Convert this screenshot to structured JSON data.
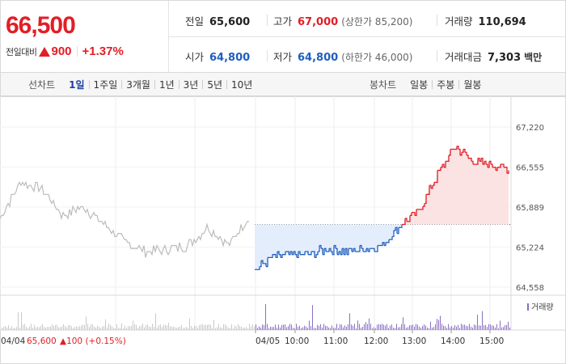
{
  "summary": {
    "current_price": "66,500",
    "change_label": "전일대비",
    "change_amount": "900",
    "change_percent": "+1.37%",
    "prev_close": {
      "label": "전일",
      "value": "65,600"
    },
    "high": {
      "label": "고가",
      "value": "67,000",
      "sub": "(상한가 85,200)"
    },
    "volume": {
      "label": "거래량",
      "value": "110,694"
    },
    "open": {
      "label": "시가",
      "value": "64,800"
    },
    "low": {
      "label": "저가",
      "value": "64,800",
      "sub": "(하한가 46,000)"
    },
    "trade_value": {
      "label": "거래대금",
      "value": "7,303",
      "unit": "백만"
    }
  },
  "tabs": {
    "line_label": "선차트",
    "line_items": [
      "1일",
      "1주일",
      "3개월",
      "1년",
      "3년",
      "5년",
      "10년"
    ],
    "line_active": 0,
    "candle_label": "봉차트",
    "candle_items": [
      "일봉",
      "주봉",
      "월봉"
    ]
  },
  "chart": {
    "y_ticks": [
      "67,220",
      "66,555",
      "65,889",
      "65,224",
      "64,558"
    ],
    "x_ticks": [
      "04/05",
      "10:00",
      "11:00",
      "12:00",
      "13:00",
      "14:00",
      "15:00"
    ],
    "prev_day_label": "04/04",
    "prev_day_price": "65,600",
    "prev_day_change": "▲100 (+0.15%)",
    "volume_legend": "거래량",
    "colors": {
      "up": "#e21e26",
      "down": "#1f5fbf",
      "prev": "#bcbcbc",
      "up_fill": "#fbe3e3",
      "down_fill": "#e4edfb",
      "volume": "#8b6fc4"
    }
  },
  "chart_data": {
    "type": "line",
    "title": "",
    "ylim": [
      64558,
      67220
    ],
    "baseline_price": 65600,
    "y_ticks": [
      67220,
      66555,
      65889,
      65224,
      64558
    ],
    "x_ticks": [
      "04/05",
      "10:00",
      "11:00",
      "12:00",
      "13:00",
      "14:00",
      "15:00"
    ],
    "series": [
      {
        "name": "전일",
        "x": [
          "04/04 start",
          "04/04 mid",
          "04/04 end"
        ],
        "values": [
          65700,
          65200,
          65600
        ]
      },
      {
        "name": "",
        "x": [
          "09:00",
          "09:30",
          "10:00",
          "10:30",
          "11:00",
          "11:30",
          "12:00",
          "12:15",
          "12:30",
          "13:00",
          "13:30",
          "14:00",
          "14:30",
          "15:00",
          "15:20"
        ],
        "values": [
          64850,
          65050,
          65100,
          65100,
          65200,
          65150,
          65200,
          65250,
          65600,
          65800,
          66400,
          66900,
          66650,
          66600,
          66500
        ]
      }
    ]
  }
}
